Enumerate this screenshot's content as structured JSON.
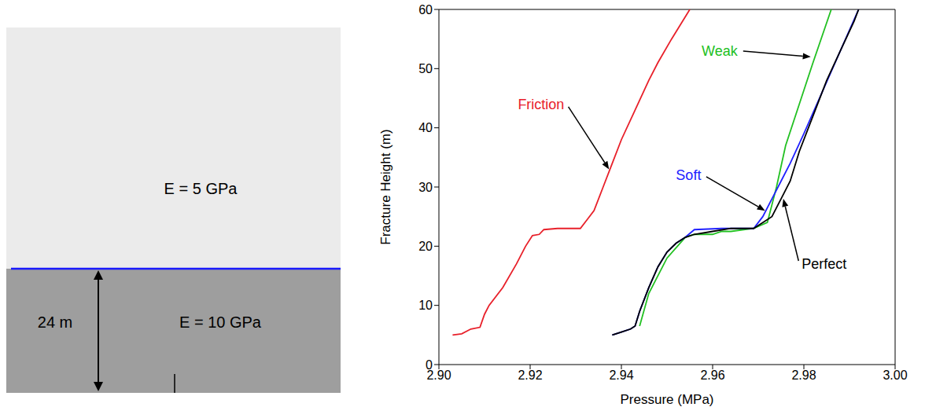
{
  "diagram": {
    "upper_layer": {
      "label": "E = 5 GPa"
    },
    "lower_layer": {
      "label": "E = 10 GPa",
      "thickness_label": "24 m"
    }
  },
  "chart_data": {
    "type": "line",
    "x_label": "Pressure (MPa)",
    "y_label": "Fracture Height (m)",
    "xlim": [
      2.9,
      3
    ],
    "xticks": [
      {
        "value": 2.9,
        "label": "2.90"
      },
      2.92,
      2.94,
      2.96,
      2.98,
      {
        "value": 3,
        "label": "3.00"
      }
    ],
    "ylim": [
      0,
      60
    ],
    "yticks": [
      0,
      10,
      20,
      30,
      40,
      50,
      60
    ],
    "series": [
      {
        "name": "Friction",
        "color": "#e8202a",
        "x": [
          2.903,
          2.905,
          2.907,
          2.909,
          2.91,
          2.911,
          2.914,
          2.917,
          2.919,
          2.9205,
          2.922,
          2.923,
          2.926,
          2.931,
          2.9325,
          2.934,
          2.936,
          2.938,
          2.94,
          2.943,
          2.946,
          2.948,
          2.951,
          2.955
        ],
        "values": [
          5,
          5.2,
          6,
          6.3,
          8.5,
          10,
          13,
          17,
          20,
          21.8,
          22,
          22.8,
          23,
          23,
          24.5,
          26,
          30,
          34,
          38,
          43,
          48,
          51,
          55,
          60
        ]
      },
      {
        "name": "Weak",
        "color": "#22c022",
        "x": [
          2.944,
          2.946,
          2.95,
          2.954,
          2.956,
          2.96,
          2.962,
          2.964,
          2.969,
          2.972,
          2.974,
          2.976,
          2.979,
          2.982,
          2.986
        ],
        "values": [
          6.5,
          12,
          18,
          21.5,
          22,
          22,
          22.5,
          22.5,
          23,
          24,
          30,
          37,
          44,
          51,
          60
        ]
      },
      {
        "name": "Soft",
        "color": "#2020ff",
        "x": [
          2.938,
          2.94,
          2.942,
          2.943,
          2.944,
          2.946,
          2.948,
          2.95,
          2.952,
          2.954,
          2.956,
          2.962,
          2.969,
          2.971,
          2.973,
          2.975,
          2.977,
          2.98,
          2.984,
          2.988,
          2.992
        ],
        "values": [
          5,
          5.5,
          6,
          6.5,
          9,
          13,
          16.5,
          19,
          20.5,
          21.5,
          22.8,
          23,
          23,
          25,
          28,
          31,
          34,
          39,
          46,
          53,
          60
        ]
      },
      {
        "name": "Perfect",
        "color": "#000000",
        "x": [
          2.938,
          2.94,
          2.942,
          2.943,
          2.944,
          2.946,
          2.948,
          2.95,
          2.952,
          2.954,
          2.956,
          2.96,
          2.964,
          2.969,
          2.971,
          2.973,
          2.975,
          2.977,
          2.979,
          2.982,
          2.985,
          2.988,
          2.991,
          2.992
        ],
        "values": [
          5,
          5.5,
          6,
          6.5,
          9,
          13,
          16.5,
          19,
          20.5,
          21.5,
          22,
          22.5,
          23,
          23,
          24,
          25,
          28,
          31,
          36,
          42,
          48,
          53,
          58,
          60
        ]
      }
    ],
    "annotations": [
      {
        "text": "Friction",
        "color": "#e8202a",
        "x": 2.928,
        "y": 44,
        "arrow_x": 2.9373,
        "arrow_y": 33
      },
      {
        "text": "Weak",
        "color": "#22c022",
        "x": 2.966,
        "y": 53,
        "arrow_x": 2.9815,
        "arrow_y": 52
      },
      {
        "text": "Soft",
        "color": "#2020ff",
        "x": 2.958,
        "y": 32,
        "arrow_x": 2.9715,
        "arrow_y": 26
      },
      {
        "text": "Perfect",
        "color": "#000000",
        "x": 2.979,
        "y": 17,
        "arrow_x": 2.9755,
        "arrow_y": 28
      }
    ]
  }
}
